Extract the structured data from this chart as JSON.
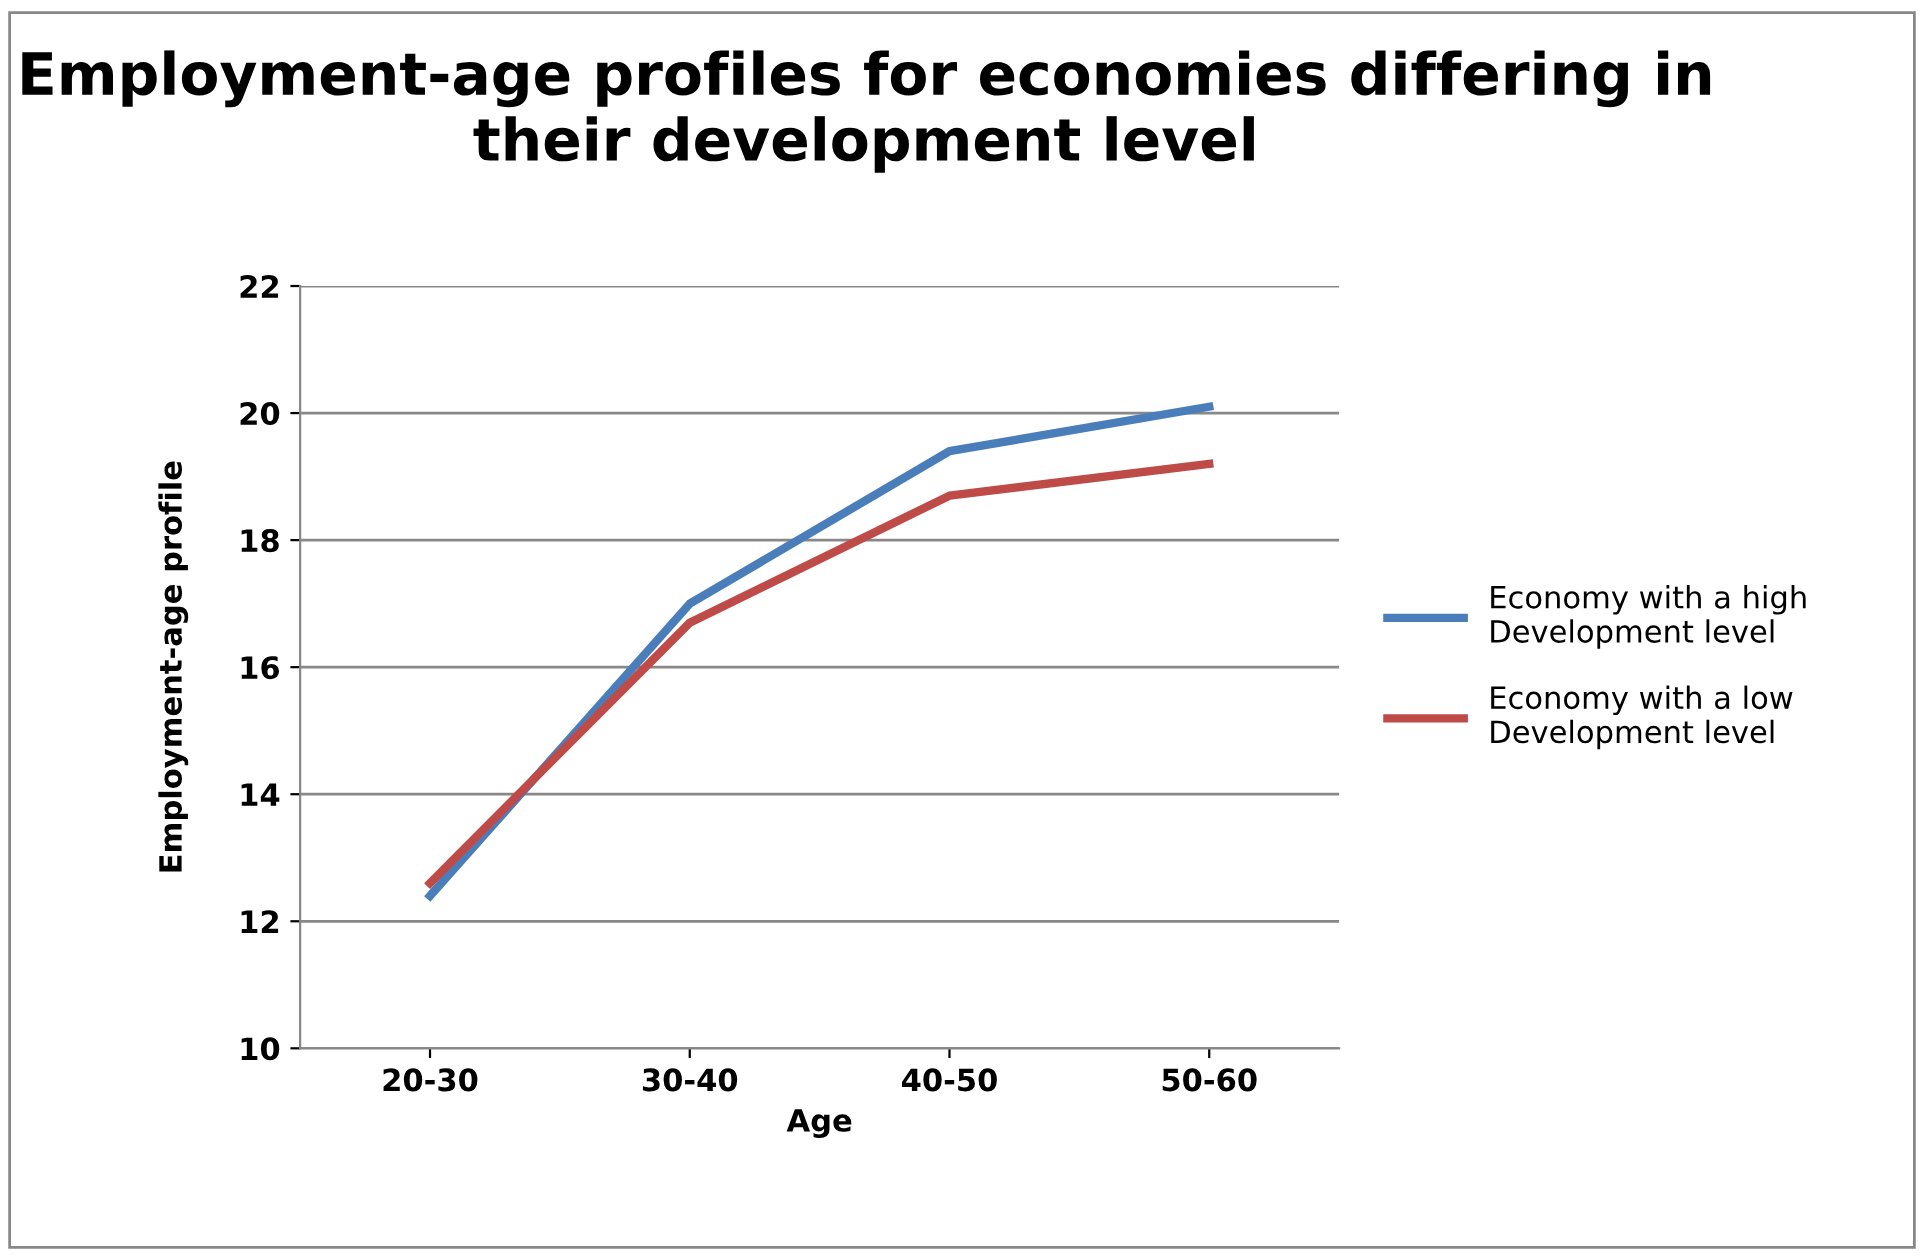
{
  "chart_data": {
    "type": "line",
    "title": "Employment-age profiles for economies differing in their development level",
    "xlabel": "Age",
    "ylabel": "Employment-age profile",
    "categories": [
      "20-30",
      "30-40",
      "40-50",
      "50-60"
    ],
    "series": [
      {
        "name": "Economy with a high Development level",
        "color": "#4a7ebb",
        "values": [
          12.4,
          17.0,
          19.4,
          20.1
        ]
      },
      {
        "name": "Economy with a low Development level",
        "color": "#be4b48",
        "values": [
          12.6,
          16.7,
          18.7,
          19.2
        ]
      }
    ],
    "ylim": [
      10,
      22
    ],
    "yticks": [
      10,
      12,
      14,
      16,
      18,
      20,
      22
    ],
    "grid": "y",
    "legend": "right",
    "marker": "none",
    "line_style": "solid"
  }
}
